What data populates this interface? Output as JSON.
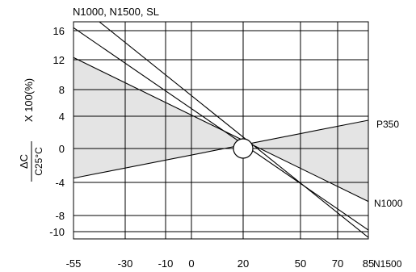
{
  "chart_data": {
    "type": "line",
    "title": "N1000, N1500, SL",
    "ylabel_fraction": {
      "numerator": "ΔC",
      "denominator": "C25°C"
    },
    "ylabel_multiplier": "X 100(%)",
    "x_ticks": [
      {
        "value": -55,
        "label": "-55"
      },
      {
        "value": -30,
        "label": "-30"
      },
      {
        "value": -10,
        "label": "-10"
      },
      {
        "value": 0,
        "label": "0"
      },
      {
        "value": 20,
        "label": "20"
      },
      {
        "value": 50,
        "label": "50"
      },
      {
        "value": 70,
        "label": "70"
      },
      {
        "value": 85,
        "label": "85"
      }
    ],
    "y_ticks": [
      {
        "value": 16,
        "label": "16"
      },
      {
        "value": 12,
        "label": "12"
      },
      {
        "value": 8,
        "label": "8"
      },
      {
        "value": 4,
        "label": "4"
      },
      {
        "value": 0,
        "label": "0"
      },
      {
        "value": -4,
        "label": "-4"
      },
      {
        "value": -8,
        "label": "-8"
      },
      {
        "value": -10,
        "label": "-10"
      }
    ],
    "xlim": [
      -55,
      85
    ],
    "ylim": [
      -11,
      17.5
    ],
    "grid": true,
    "series": [
      {
        "name": "P350",
        "x": [
          -55,
          85
        ],
        "y": [
          -3.5,
          3.5
        ]
      },
      {
        "name": "N1000",
        "x": [
          -55,
          85
        ],
        "y": [
          12.3,
          -6.3
        ]
      },
      {
        "name": "N1500",
        "x": [
          -55,
          85
        ],
        "y": [
          16.5,
          -9.8
        ]
      },
      {
        "name": "",
        "x": [
          -55,
          85
        ],
        "y": [
          21,
          -10.8
        ]
      }
    ],
    "shaded_region": {
      "between": [
        "P350",
        "N1000"
      ],
      "color": "#e4e4e4"
    },
    "reference_marker": {
      "x": 20,
      "y": 0,
      "shape": "circle"
    },
    "x_end_label": "N1500",
    "colors": {
      "line": "#000000",
      "grid": "#000000",
      "fill": "#e4e4e4"
    }
  }
}
